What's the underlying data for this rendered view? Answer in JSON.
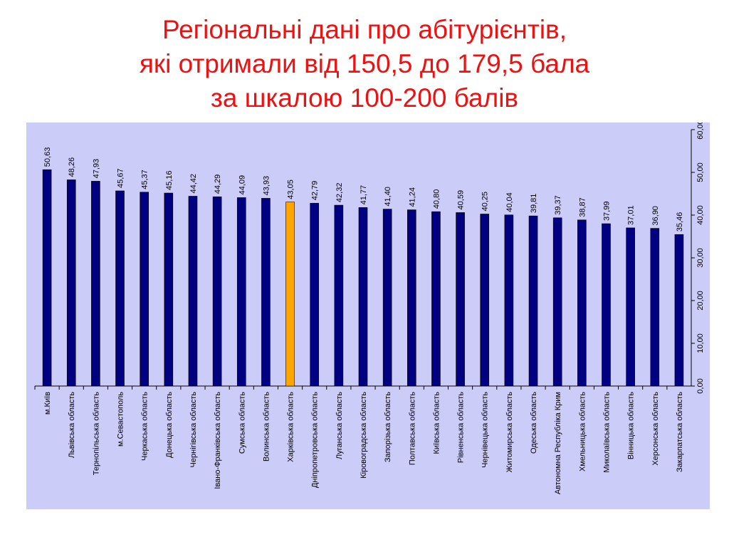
{
  "title_lines": [
    "Регіональні дані про абітурієнтів,",
    "які отримали від 150,5 до 179,5 бала",
    "за шкалою 100-200 балів"
  ],
  "colors": {
    "title": "#ee1111",
    "background": "#ccccf9",
    "bar": "#000080",
    "highlight": "#ffa500"
  },
  "chart_data": {
    "type": "bar",
    "title": "",
    "xlabel": "",
    "ylabel": "",
    "ylim": [
      0,
      60
    ],
    "yticks": [
      "0,00",
      "10,00",
      "20,00",
      "30,00",
      "40,00",
      "50,00",
      "60,00"
    ],
    "y_axis_position": "right",
    "categories": [
      "м.Київ",
      "Львівська область",
      "Тернопільська область",
      "м.Севастополь",
      "Черкаська область",
      "Донецька область",
      "Чернігівська область",
      "Івано-Франківська область",
      "Сумська область",
      "Волинська область",
      "Харківська область",
      "Дніпропетровська область",
      "Луганська область",
      "Кіровоградська область",
      "Запорізька область",
      "Полтавська область",
      "Київська область",
      "Рівненська область",
      "Чернівецька область",
      "Житомирська область",
      "Одеська область",
      "Автономна Республіка Крим",
      "Хмельницька область",
      "Миколаївська область",
      "Вінницька область",
      "Херсонська область",
      "Закарпатська область"
    ],
    "values": [
      50.63,
      48.26,
      47.93,
      45.67,
      45.37,
      45.16,
      44.42,
      44.29,
      44.09,
      43.93,
      43.05,
      42.79,
      42.32,
      41.77,
      41.4,
      41.24,
      40.8,
      40.59,
      40.25,
      40.04,
      39.81,
      39.37,
      38.87,
      37.99,
      37.01,
      36.9,
      35.46
    ],
    "value_labels": [
      "50,63",
      "48,26",
      "47,93",
      "45,67",
      "45,37",
      "45,16",
      "44,42",
      "44,29",
      "44,09",
      "43,93",
      "43,05",
      "42,79",
      "42,32",
      "41,77",
      "41,40",
      "41,24",
      "40,80",
      "40,59",
      "40,25",
      "40,04",
      "39,81",
      "39,37",
      "38,87",
      "37,99",
      "37,01",
      "36,90",
      "35,46"
    ],
    "highlighted_category": "Харківська область"
  }
}
